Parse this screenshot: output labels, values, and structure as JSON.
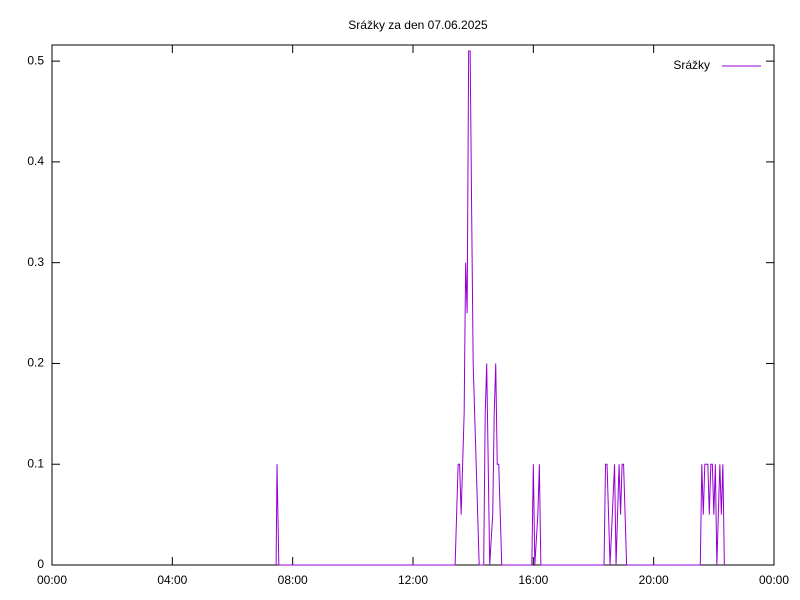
{
  "chart_data": {
    "type": "line",
    "title": "Srážky za den 07.06.2025",
    "x": [
      7.45,
      7.48,
      7.51,
      7.54,
      13.4,
      13.45,
      13.5,
      13.55,
      13.6,
      13.65,
      13.7,
      13.75,
      13.8,
      13.85,
      13.9,
      13.95,
      14.0,
      14.05,
      14.1,
      14.15,
      14.2,
      14.35,
      14.4,
      14.45,
      14.5,
      14.55,
      14.65,
      14.7,
      14.75,
      14.8,
      14.85,
      14.9,
      14.95,
      15.95,
      16.0,
      16.05,
      16.15,
      16.2,
      16.25,
      18.35,
      18.4,
      18.45,
      18.5,
      18.55,
      18.7,
      18.75,
      18.85,
      18.9,
      18.95,
      19.0,
      19.05,
      19.1,
      21.55,
      21.6,
      21.65,
      21.7,
      21.75,
      21.8,
      21.85,
      21.9,
      21.95,
      22.0,
      22.05,
      22.1,
      22.15,
      22.2,
      22.25,
      22.3,
      22.35
    ],
    "series": [
      {
        "name": "Srážky",
        "color": "#9400d3",
        "values": [
          0,
          0.1,
          0.05,
          0,
          0,
          0.05,
          0.1,
          0.1,
          0.05,
          0.1,
          0.15,
          0.3,
          0.25,
          0.51,
          0.51,
          0.35,
          0.2,
          0.15,
          0.1,
          0.05,
          0,
          0,
          0.15,
          0.2,
          0.1,
          0,
          0.05,
          0.15,
          0.2,
          0.1,
          0.1,
          0.05,
          0,
          0,
          0.1,
          0,
          0.05,
          0.1,
          0,
          0,
          0.1,
          0.1,
          0.05,
          0,
          0.1,
          0,
          0.1,
          0.05,
          0.1,
          0.1,
          0.05,
          0,
          0,
          0.1,
          0.05,
          0.1,
          0.1,
          0.1,
          0.05,
          0.1,
          0.1,
          0.05,
          0.1,
          0,
          0.05,
          0.1,
          0.05,
          0.1,
          0
        ]
      }
    ],
    "xlim": [
      0,
      24
    ],
    "xticks": [
      {
        "value": 0,
        "label": "00:00"
      },
      {
        "value": 4,
        "label": "04:00"
      },
      {
        "value": 8,
        "label": "08:00"
      },
      {
        "value": 12,
        "label": "12:00"
      },
      {
        "value": 16,
        "label": "16:00"
      },
      {
        "value": 20,
        "label": "20:00"
      },
      {
        "value": 24,
        "label": "00:00"
      }
    ],
    "ylim": [
      0,
      0.516
    ],
    "yticks": [
      0,
      {
        "value": 0.1,
        "label": "0.1"
      },
      {
        "value": 0.2,
        "label": "0.2"
      },
      {
        "value": 0.3,
        "label": "0.3"
      },
      {
        "value": 0.4,
        "label": "0.4"
      },
      {
        "value": 0.5,
        "label": "0.5"
      }
    ],
    "legend": "top-right"
  }
}
